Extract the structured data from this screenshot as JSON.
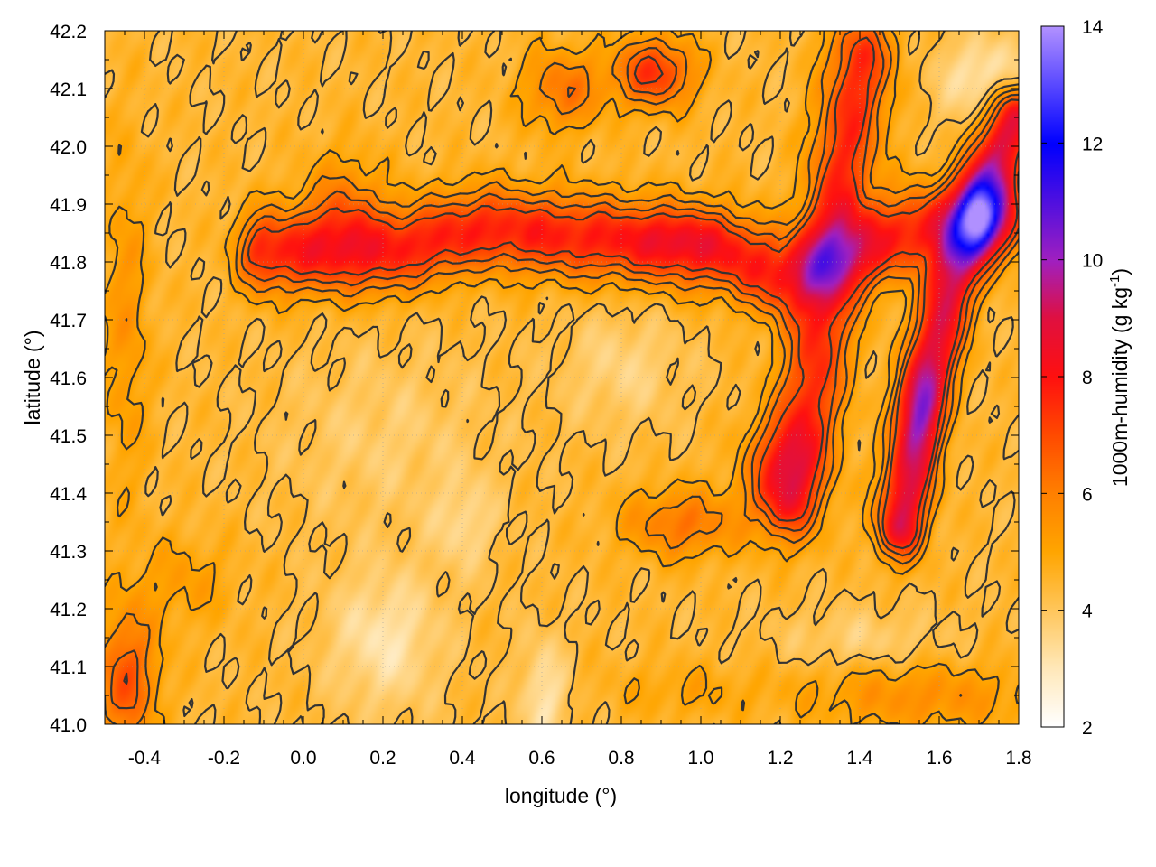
{
  "chart_data": {
    "type": "heatmap",
    "title": "",
    "xlabel": "longitude (°)",
    "ylabel": "latitude (°)",
    "xlim": [
      -0.5,
      1.8
    ],
    "ylim": [
      41.0,
      42.2
    ],
    "x_ticks": [
      "-0.4",
      "-0.2",
      "0.0",
      "0.2",
      "0.4",
      "0.6",
      "0.8",
      "1.0",
      "1.2",
      "1.4",
      "1.6",
      "1.8"
    ],
    "x_tick_values": [
      -0.4,
      -0.2,
      0.0,
      0.2,
      0.4,
      0.6,
      0.8,
      1.0,
      1.2,
      1.4,
      1.6,
      1.8
    ],
    "y_ticks": [
      "41.0",
      "41.1",
      "41.2",
      "41.3",
      "41.4",
      "41.5",
      "41.6",
      "41.7",
      "41.8",
      "41.9",
      "42.0",
      "42.1",
      "42.2"
    ],
    "y_tick_values": [
      41.0,
      41.1,
      41.2,
      41.3,
      41.4,
      41.5,
      41.6,
      41.7,
      41.8,
      41.9,
      42.0,
      42.1,
      42.2
    ],
    "grid": true,
    "colorbar": {
      "label_main": "1000m-humidity (g kg",
      "label_sup": "-1",
      "label_end": ")",
      "range": [
        2,
        14
      ],
      "ticks": [
        "2",
        "4",
        "6",
        "8",
        "10",
        "12",
        "14"
      ],
      "tick_values": [
        2,
        4,
        6,
        8,
        10,
        12,
        14
      ],
      "palette_stops": [
        {
          "value": 2,
          "color": "#ffffff"
        },
        {
          "value": 3,
          "color": "#ffe8b8"
        },
        {
          "value": 4,
          "color": "#ffc65a"
        },
        {
          "value": 5,
          "color": "#ffa500"
        },
        {
          "value": 6,
          "color": "#ff8000"
        },
        {
          "value": 7,
          "color": "#ff4a00"
        },
        {
          "value": 8,
          "color": "#ff1010"
        },
        {
          "value": 9,
          "color": "#e01040"
        },
        {
          "value": 10,
          "color": "#a020c0"
        },
        {
          "value": 12,
          "color": "#0000ff"
        },
        {
          "value": 14,
          "color": "#b090ff"
        }
      ]
    },
    "contour_color": "#333333",
    "features": [
      {
        "kind": "base",
        "value": 4.4
      },
      {
        "kind": "ridge",
        "points": [
          [
            -0.1,
            41.82
          ],
          [
            0.2,
            41.82
          ],
          [
            0.45,
            41.86
          ],
          [
            0.8,
            41.84
          ],
          [
            1.05,
            41.82
          ],
          [
            1.2,
            41.78
          ],
          [
            1.3,
            41.8
          ],
          [
            1.55,
            41.86
          ],
          [
            1.75,
            41.88
          ]
        ],
        "peak": 7.8,
        "width": 0.07
      },
      {
        "kind": "ridge",
        "points": [
          [
            1.22,
            41.4
          ],
          [
            1.28,
            41.6
          ],
          [
            1.32,
            41.8
          ],
          [
            1.36,
            42.0
          ],
          [
            1.4,
            42.15
          ]
        ],
        "peak": 7.6,
        "width": 0.08
      },
      {
        "kind": "ridge",
        "points": [
          [
            1.5,
            41.35
          ],
          [
            1.55,
            41.55
          ],
          [
            1.62,
            41.75
          ],
          [
            1.7,
            41.92
          ],
          [
            1.78,
            42.05
          ]
        ],
        "peak": 9.0,
        "width": 0.06
      },
      {
        "kind": "blob",
        "x": 1.7,
        "y": 41.88,
        "peak": 3.0,
        "rx": 0.05,
        "ry": 0.06
      },
      {
        "kind": "blob",
        "x": 1.55,
        "y": 41.55,
        "peak": 1.6,
        "rx": 0.05,
        "ry": 0.08
      },
      {
        "kind": "blob",
        "x": 0.88,
        "y": 42.13,
        "peak": 3.0,
        "rx": 0.1,
        "ry": 0.06
      },
      {
        "kind": "blob",
        "x": 0.65,
        "y": 42.1,
        "peak": 1.8,
        "rx": 0.1,
        "ry": 0.07
      },
      {
        "kind": "blob",
        "x": 0.1,
        "y": 41.9,
        "peak": 1.5,
        "rx": 0.1,
        "ry": 0.09
      },
      {
        "kind": "blob",
        "x": 1.2,
        "y": 41.45,
        "peak": 1.8,
        "rx": 0.1,
        "ry": 0.08
      },
      {
        "kind": "blob",
        "x": 0.95,
        "y": 41.35,
        "peak": 1.8,
        "rx": 0.15,
        "ry": 0.06
      },
      {
        "kind": "blob",
        "x": -0.45,
        "y": 41.08,
        "peak": 2.4,
        "rx": 0.08,
        "ry": 0.12
      },
      {
        "kind": "blob",
        "x": -0.45,
        "y": 41.7,
        "peak": 1.0,
        "rx": 0.06,
        "ry": 0.3
      },
      {
        "kind": "blob",
        "x": -0.3,
        "y": 41.25,
        "peak": 0.8,
        "rx": 0.12,
        "ry": 0.08
      },
      {
        "kind": "blob",
        "x": 1.72,
        "y": 42.12,
        "peak": -1.5,
        "rx": 0.12,
        "ry": 0.07
      },
      {
        "kind": "blob",
        "x": 0.95,
        "y": 41.85,
        "peak": 1.0,
        "rx": 0.12,
        "ry": 0.05
      },
      {
        "kind": "blob",
        "x": 0.8,
        "y": 41.62,
        "peak": -0.8,
        "rx": 0.15,
        "ry": 0.1
      },
      {
        "kind": "blob",
        "x": 0.2,
        "y": 41.5,
        "peak": -0.6,
        "rx": 0.25,
        "ry": 0.15
      },
      {
        "kind": "blob",
        "x": 0.2,
        "y": 41.15,
        "peak": -1.3,
        "rx": 0.14,
        "ry": 0.12
      },
      {
        "kind": "blob",
        "x": 0.6,
        "y": 41.05,
        "peak": -1.3,
        "rx": 0.06,
        "ry": 0.1
      },
      {
        "kind": "blob",
        "x": 0.4,
        "y": 41.35,
        "peak": -0.9,
        "rx": 0.08,
        "ry": 0.08
      },
      {
        "kind": "blob",
        "x": 1.55,
        "y": 41.05,
        "peak": 1.2,
        "rx": 0.3,
        "ry": 0.06
      },
      {
        "kind": "blob",
        "x": 1.4,
        "y": 41.15,
        "peak": -0.7,
        "rx": 0.2,
        "ry": 0.05
      },
      {
        "kind": "blob",
        "x": 0.95,
        "y": 41.06,
        "peak": 0.6,
        "rx": 0.2,
        "ry": 0.05
      }
    ],
    "contour_levels": [
      4.3,
      5.0,
      5.7,
      6.4,
      7.1
    ]
  }
}
